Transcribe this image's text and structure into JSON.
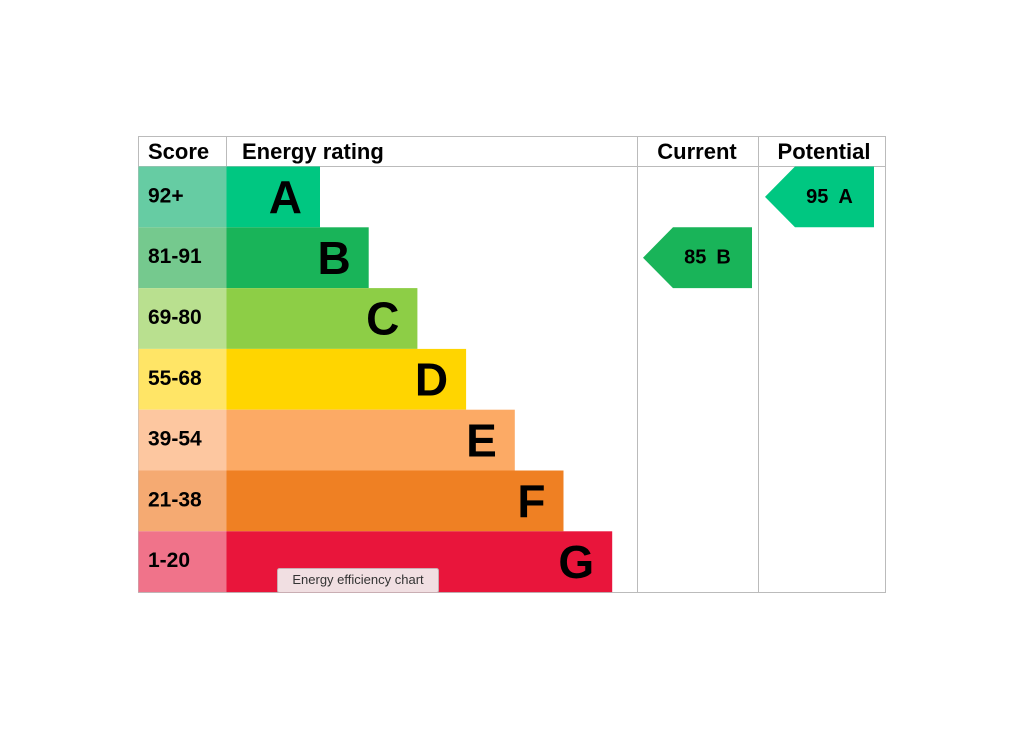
{
  "headers": {
    "score": "Score",
    "rating": "Energy rating",
    "current": "Current",
    "potential": "Potential"
  },
  "bands": [
    {
      "score": "92+",
      "letter": "A",
      "color": "#00c781",
      "score_color": "#66cca3"
    },
    {
      "score": "81-91",
      "letter": "B",
      "color": "#19b459",
      "score_color": "#75c98e"
    },
    {
      "score": "69-80",
      "letter": "C",
      "color": "#8dce46",
      "score_color": "#b9e08f"
    },
    {
      "score": "55-68",
      "letter": "D",
      "color": "#ffd500",
      "score_color": "#ffe566"
    },
    {
      "score": "39-54",
      "letter": "E",
      "color": "#fcaa65",
      "score_color": "#fdc7a0"
    },
    {
      "score": "21-38",
      "letter": "F",
      "color": "#ef8023",
      "score_color": "#f5aa72"
    },
    {
      "score": "1-20",
      "letter": "G",
      "color": "#e9153b",
      "score_color": "#f0738a"
    }
  ],
  "current": {
    "value": 85,
    "letter": "B"
  },
  "potential": {
    "value": 95,
    "letter": "A"
  },
  "tooltip": "Energy efficiency chart"
}
